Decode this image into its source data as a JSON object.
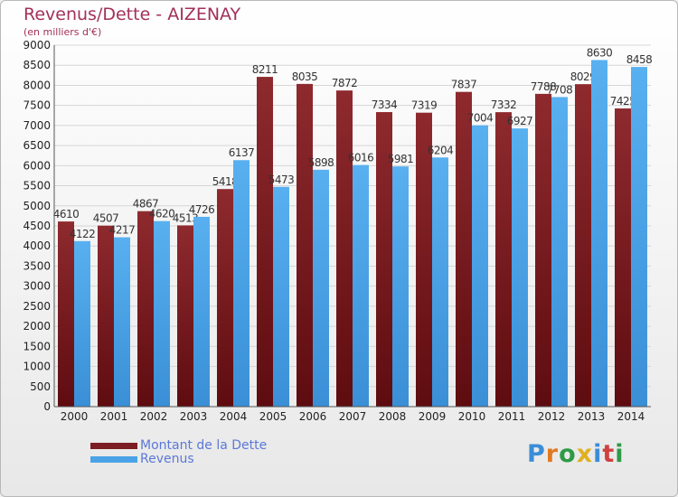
{
  "title": "Revenus/Dette - AIZENAY",
  "subtitle": "(en milliers d'€)",
  "logo": {
    "text": "Proxiti",
    "letter_colors": [
      "#3a8dd8",
      "#e07a22",
      "#2f9a46",
      "#e0b020",
      "#3a8dd8",
      "#d04040",
      "#2f9a46"
    ]
  },
  "colors": {
    "dette": "#7b1d22",
    "revenus": "#4aa3e6",
    "axis": "#555555",
    "grid": "#d6d6d6"
  },
  "chart_data": {
    "type": "bar",
    "title": "Revenus/Dette - AIZENAY",
    "subtitle": "(en milliers d'€)",
    "categories": [
      "2000",
      "2001",
      "2002",
      "2003",
      "2004",
      "2005",
      "2006",
      "2007",
      "2008",
      "2009",
      "2010",
      "2011",
      "2012",
      "2013",
      "2014"
    ],
    "series": [
      {
        "name": "Montant de la Dette",
        "values": [
          4610,
          4507,
          4867,
          4513,
          5418,
          8211,
          8035,
          7872,
          7334,
          7319,
          7837,
          7332,
          7788,
          8029,
          7425
        ]
      },
      {
        "name": "Revenus",
        "values": [
          4122,
          4217,
          4620,
          4726,
          6137,
          5473,
          5898,
          6016,
          5981,
          6204,
          7004,
          6927,
          7708,
          8630,
          8458
        ]
      }
    ],
    "ylim": [
      0,
      9000
    ],
    "yticks": [
      0,
      500,
      1000,
      1500,
      2000,
      2500,
      3000,
      3500,
      4000,
      4500,
      5000,
      5500,
      6000,
      6500,
      7000,
      7500,
      8000,
      8500,
      9000
    ],
    "grid": true,
    "legend_position": "bottom-left"
  }
}
